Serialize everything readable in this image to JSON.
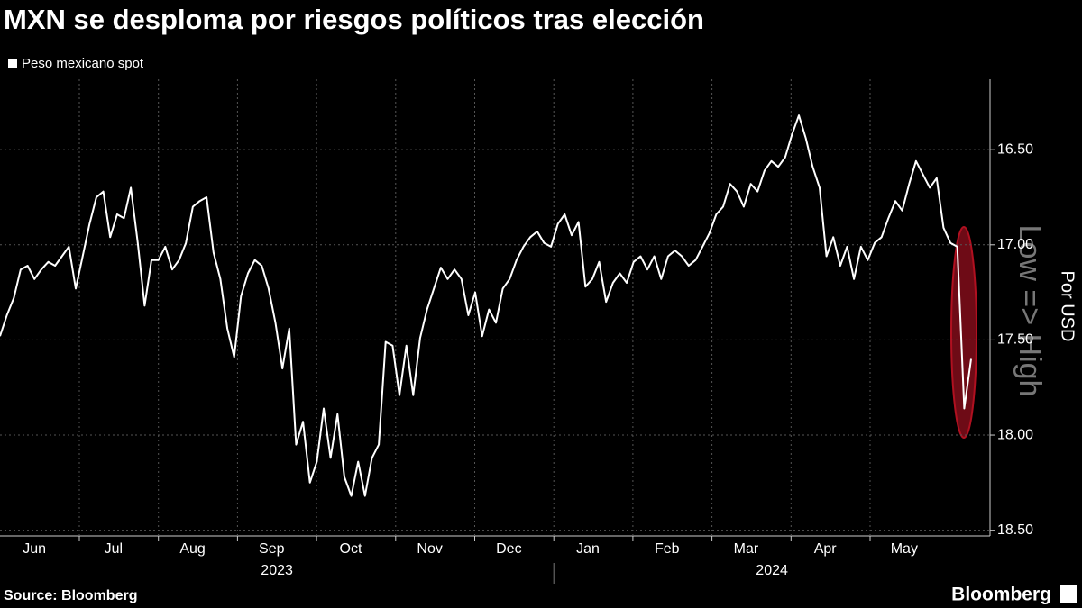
{
  "chart_data": {
    "type": "line",
    "title": "MXN se desploma por riesgos políticos tras elección",
    "y_axis_label": "Por USD",
    "annotation": "Low => High",
    "source": "Source: Bloomberg",
    "brand": "Bloomberg",
    "months": [
      "Jun",
      "Jul",
      "Aug",
      "Sep",
      "Oct",
      "Nov",
      "Dec",
      "Jan",
      "Feb",
      "Mar",
      "Apr",
      "May"
    ],
    "years": [
      "2023",
      "2024"
    ],
    "ylim": [
      16.13,
      18.53
    ],
    "inverted": true,
    "yticks": [
      {
        "value": 16.5,
        "label": "16.50"
      },
      {
        "value": 17,
        "label": "17.00"
      },
      {
        "value": 17.5,
        "label": "17.50"
      },
      {
        "value": 18,
        "label": "18.00"
      },
      {
        "value": 18.5,
        "label": "18.50"
      }
    ],
    "grid": true,
    "series": [
      {
        "name": "Peso mexicano spot",
        "color": "#ffffff",
        "values": [
          17.48,
          17.37,
          17.28,
          17.13,
          17.11,
          17.18,
          17.13,
          17.09,
          17.11,
          17.06,
          17.01,
          17.23,
          17.06,
          16.89,
          16.75,
          16.72,
          16.96,
          16.84,
          16.86,
          16.7,
          16.99,
          17.32,
          17.08,
          17.08,
          17.01,
          17.13,
          17.08,
          16.99,
          16.8,
          16.77,
          16.75,
          17.04,
          17.18,
          17.44,
          17.59,
          17.27,
          17.15,
          17.08,
          17.11,
          17.23,
          17.41,
          17.65,
          17.44,
          18.05,
          17.93,
          18.25,
          18.14,
          17.86,
          18.12,
          17.89,
          18.22,
          18.32,
          18.14,
          18.32,
          18.12,
          18.05,
          17.51,
          17.53,
          17.79,
          17.53,
          17.79,
          17.49,
          17.34,
          17.23,
          17.12,
          17.18,
          17.13,
          17.18,
          17.37,
          17.25,
          17.48,
          17.34,
          17.41,
          17.23,
          17.18,
          17.08,
          17.01,
          16.96,
          16.93,
          16.99,
          17.01,
          16.89,
          16.84,
          16.95,
          16.88,
          17.22,
          17.18,
          17.09,
          17.3,
          17.2,
          17.15,
          17.2,
          17.09,
          17.06,
          17.13,
          17.06,
          17.18,
          17.06,
          17.03,
          17.06,
          17.11,
          17.08,
          17.01,
          16.94,
          16.84,
          16.8,
          16.68,
          16.72,
          16.8,
          16.68,
          16.72,
          16.61,
          16.56,
          16.59,
          16.54,
          16.42,
          16.32,
          16.44,
          16.59,
          16.7,
          17.06,
          16.96,
          17.11,
          17.01,
          17.18,
          17.01,
          17.08,
          16.99,
          16.96,
          16.86,
          16.77,
          16.82,
          16.68,
          16.56,
          16.63,
          16.7,
          16.65,
          16.91,
          16.99,
          17.01,
          17.86,
          17.6
        ]
      }
    ]
  }
}
